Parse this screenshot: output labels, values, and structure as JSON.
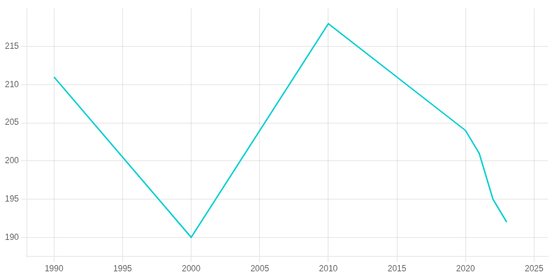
{
  "chart_data": {
    "type": "line",
    "x": [
      1990,
      2000,
      2010,
      2020,
      2021,
      2022,
      2023
    ],
    "values": [
      211,
      190,
      218,
      204,
      201,
      195,
      192
    ],
    "color": "#00CED1",
    "xlim": [
      1988,
      2026
    ],
    "ylim": [
      187.5,
      220
    ],
    "xticks": [
      1990,
      1995,
      2000,
      2005,
      2010,
      2015,
      2020,
      2025
    ],
    "yticks": [
      190,
      195,
      200,
      205,
      210,
      215
    ],
    "grid": true
  }
}
